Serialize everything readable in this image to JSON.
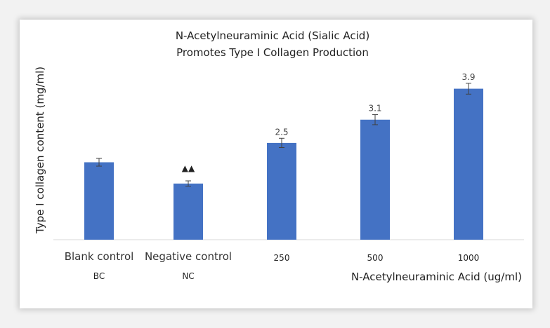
{
  "chart_data": {
    "type": "bar",
    "title": "N-Acetylneuraminic Acid (Sialic Acid)\nPromotes Type I Collagen Production",
    "title_lines": [
      "N-Acetylneuraminic Acid (Sialic Acid)",
      "Promotes Type I Collagen Production"
    ],
    "ylabel": "Type I collagen content (mg/ml)",
    "xlabel": "N-Acetylneuraminic Acid (ug/ml)",
    "categories": [
      "Blank control",
      "Negative control",
      "250",
      "500",
      "1000"
    ],
    "category_sublabels": [
      "BC",
      "NC",
      "",
      "",
      ""
    ],
    "values": [
      2.0,
      1.45,
      2.5,
      3.1,
      3.9
    ],
    "error": [
      0.1,
      0.07,
      0.12,
      0.13,
      0.14
    ],
    "data_labels": [
      "",
      "",
      "2.5",
      "3.1",
      "3.9"
    ],
    "annotations": [
      {
        "category": "Negative control",
        "text": "▲▲"
      }
    ],
    "ylim": [
      0,
      4.2
    ],
    "grid": false,
    "legend": "none",
    "bar_color": "#4472c4",
    "error_color": "#404040"
  }
}
